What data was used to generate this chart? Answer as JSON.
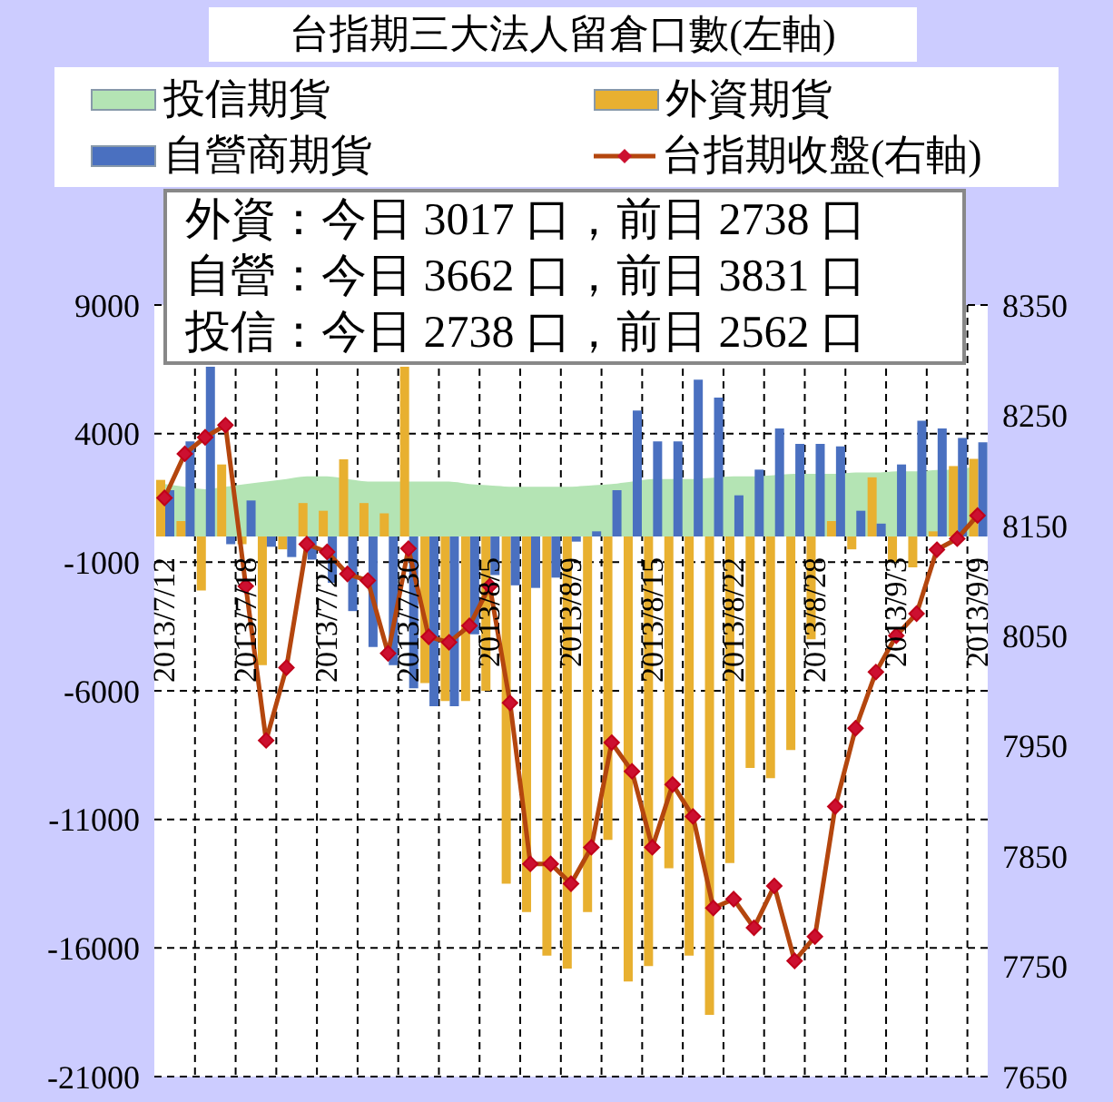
{
  "chart_data": {
    "type": "bar",
    "title": "台指期三大法人留倉口數(左軸)",
    "categories": [
      "2013/7/12",
      null,
      null,
      null,
      "2013/7/18",
      null,
      null,
      null,
      "2013/7/24",
      null,
      null,
      null,
      "2013/7/30",
      null,
      null,
      null,
      "2013/8/5",
      null,
      null,
      null,
      "2013/8/9",
      null,
      null,
      null,
      "2013/8/15",
      null,
      null,
      null,
      "2013/8/22",
      null,
      null,
      null,
      "2013/8/28",
      null,
      null,
      null,
      "2013/9/3",
      null,
      null,
      null,
      "2013/9/9"
    ],
    "series": [
      {
        "name": "投信期貨",
        "type": "area",
        "color": "#b4e4b4",
        "values": [
          2000,
          1900,
          1800,
          1900,
          2000,
          2100,
          2200,
          2300,
          2300,
          2200,
          2100,
          2100,
          2100,
          2100,
          2100,
          2000,
          1950,
          1900,
          1900,
          1900,
          1900,
          1950,
          2000,
          2100,
          2200,
          2200,
          2200,
          2250,
          2300,
          2300,
          2350,
          2400,
          2400,
          2400,
          2450,
          2450,
          2500,
          2500,
          2550,
          2562,
          2738
        ]
      },
      {
        "name": "外資期貨",
        "color": "#e8b030",
        "values": [
          2200,
          600,
          -2100,
          2800,
          -300,
          -5000,
          -500,
          1300,
          1000,
          3000,
          1300,
          900,
          6600,
          -5700,
          -6400,
          -6400,
          -6000,
          -13500,
          -14600,
          -16300,
          -16800,
          -14600,
          -11800,
          -17300,
          -16700,
          -12900,
          -16300,
          -18600,
          -12700,
          -9000,
          -9400,
          -8300,
          -4000,
          600,
          -500,
          2300,
          -1000,
          -1200,
          200,
          2738,
          3017
        ]
      },
      {
        "name": "自營商期貨",
        "color": "#4a70c0",
        "values": [
          1800,
          3700,
          6600,
          -300,
          1400,
          -400,
          -800,
          -900,
          -1800,
          -2900,
          -4300,
          -5000,
          -5900,
          -6600,
          -6600,
          -3800,
          -1500,
          -1900,
          -2000,
          -1600,
          -200,
          200,
          1800,
          4900,
          3700,
          3700,
          6100,
          5400,
          1600,
          2600,
          4200,
          3600,
          3600,
          3500,
          1000,
          500,
          2800,
          4500,
          4200,
          3831,
          3662
        ]
      },
      {
        "name": "台指期收盤(右軸)",
        "type": "line",
        "axis": "y2",
        "marker": "diamond",
        "color": "#b4460e",
        "values": [
          8175,
          8215,
          8230,
          8241,
          8095,
          7955,
          8021,
          8133,
          8126,
          8106,
          8100,
          8034,
          8129,
          8049,
          8044,
          8059,
          8095,
          7989,
          7843,
          7843,
          7825,
          7858,
          7953,
          7927,
          7858,
          7915,
          7886,
          7803,
          7811,
          7785,
          7823,
          7755,
          7777,
          7895,
          7966,
          8017,
          8050,
          8070,
          8128,
          8138,
          8159
        ]
      }
    ],
    "ylim": [
      -21000,
      9000
    ],
    "yticks": [
      -21000,
      -16000,
      -11000,
      -6000,
      -1000,
      4000,
      9000
    ],
    "y2lim": [
      7650,
      8350
    ],
    "y2ticks": [
      7650,
      7750,
      7850,
      7950,
      8050,
      8150,
      8250,
      8350
    ],
    "annotations": [
      "外資：今日 3017 口，前日 2738 口",
      "自營：今日 3662 口，前日 3831 口",
      "投信：今日 2738 口，前日 2562 口"
    ],
    "grid": true,
    "legend": "top"
  }
}
